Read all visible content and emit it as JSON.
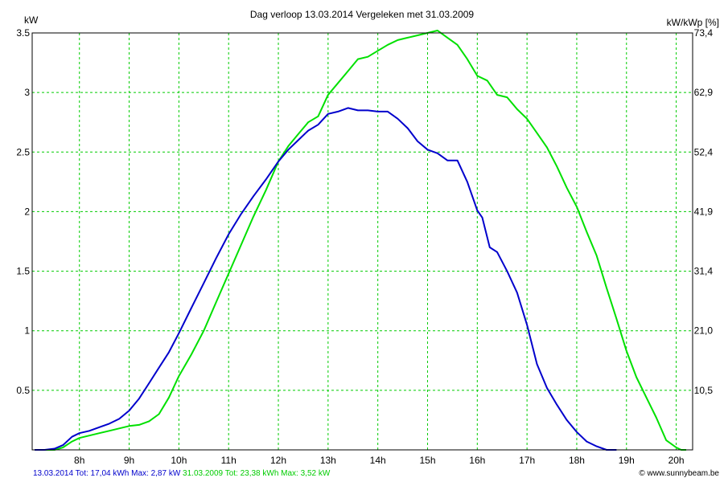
{
  "chart_data": {
    "type": "line",
    "title": "Dag  verloop 13.03.2014   Vergeleken met 31.03.2009",
    "ylabel_left": "kW",
    "ylabel_right": "kW/kWp [%]",
    "xlim": [
      7.05,
      20.33
    ],
    "ylim": [
      0,
      3.5
    ],
    "x_ticks": [
      {
        "v": 8,
        "label": "8h"
      },
      {
        "v": 9,
        "label": "9h"
      },
      {
        "v": 10,
        "label": "10h"
      },
      {
        "v": 11,
        "label": "11h"
      },
      {
        "v": 12,
        "label": "12h"
      },
      {
        "v": 13,
        "label": "13h"
      },
      {
        "v": 14,
        "label": "14h"
      },
      {
        "v": 15,
        "label": "15h"
      },
      {
        "v": 16,
        "label": "16h"
      },
      {
        "v": 17,
        "label": "17h"
      },
      {
        "v": 18,
        "label": "18h"
      },
      {
        "v": 19,
        "label": "19h"
      },
      {
        "v": 20,
        "label": "20h"
      }
    ],
    "y_ticks_left": [
      {
        "v": 0.5,
        "label": "0.5"
      },
      {
        "v": 1,
        "label": "1"
      },
      {
        "v": 1.5,
        "label": "1.5"
      },
      {
        "v": 2,
        "label": "2"
      },
      {
        "v": 2.5,
        "label": "2.5"
      },
      {
        "v": 3,
        "label": "3"
      },
      {
        "v": 3.5,
        "label": "3.5"
      }
    ],
    "y_ticks_right": [
      {
        "v": 0.5,
        "label": "10,5"
      },
      {
        "v": 1,
        "label": "21,0"
      },
      {
        "v": 1.5,
        "label": "31,4"
      },
      {
        "v": 2,
        "label": "41,9"
      },
      {
        "v": 2.5,
        "label": "52,4"
      },
      {
        "v": 3,
        "label": "62,9"
      },
      {
        "v": 3.5,
        "label": "73,4"
      }
    ],
    "grid": true,
    "colors": {
      "series1": "#0000cc",
      "series2": "#00e000",
      "grid": "#00cc00"
    },
    "series": [
      {
        "name": "13.03.2014",
        "x": [
          7.1,
          7.3,
          7.5,
          7.67,
          7.85,
          8.0,
          8.2,
          8.4,
          8.6,
          8.8,
          9.0,
          9.2,
          9.4,
          9.6,
          9.8,
          10.0,
          10.25,
          10.5,
          10.75,
          11.0,
          11.25,
          11.5,
          11.75,
          12.0,
          12.2,
          12.4,
          12.6,
          12.8,
          13.0,
          13.2,
          13.4,
          13.6,
          13.8,
          14.0,
          14.2,
          14.4,
          14.6,
          14.8,
          15.0,
          15.2,
          15.4,
          15.6,
          15.8,
          16.0,
          16.1,
          16.25,
          16.4,
          16.6,
          16.8,
          17.0,
          17.2,
          17.4,
          17.6,
          17.8,
          18.0,
          18.2,
          18.4,
          18.6,
          18.8
        ],
        "y": [
          0.0,
          0.0,
          0.01,
          0.04,
          0.11,
          0.14,
          0.16,
          0.19,
          0.22,
          0.26,
          0.33,
          0.43,
          0.56,
          0.69,
          0.82,
          0.98,
          1.19,
          1.4,
          1.61,
          1.81,
          1.98,
          2.13,
          2.27,
          2.42,
          2.52,
          2.6,
          2.68,
          2.73,
          2.82,
          2.84,
          2.87,
          2.85,
          2.85,
          2.84,
          2.84,
          2.78,
          2.7,
          2.59,
          2.52,
          2.49,
          2.43,
          2.43,
          2.25,
          2.01,
          1.95,
          1.7,
          1.66,
          1.5,
          1.32,
          1.05,
          0.72,
          0.52,
          0.38,
          0.25,
          0.15,
          0.07,
          0.03,
          0.0,
          0.0
        ]
      },
      {
        "name": "31.03.2009",
        "x": [
          7.1,
          7.3,
          7.5,
          7.67,
          7.85,
          8.0,
          8.2,
          8.4,
          8.6,
          8.8,
          9.0,
          9.2,
          9.4,
          9.6,
          9.8,
          10.0,
          10.25,
          10.5,
          10.75,
          11.0,
          11.25,
          11.5,
          11.75,
          12.0,
          12.2,
          12.4,
          12.6,
          12.8,
          13.0,
          13.2,
          13.4,
          13.6,
          13.8,
          14.0,
          14.2,
          14.4,
          14.6,
          14.8,
          15.0,
          15.2,
          15.4,
          15.6,
          15.8,
          16.0,
          16.2,
          16.4,
          16.6,
          16.8,
          17.0,
          17.2,
          17.4,
          17.6,
          17.8,
          18.0,
          18.2,
          18.4,
          18.6,
          18.8,
          19.0,
          19.2,
          19.4,
          19.6,
          19.8,
          20.0,
          20.1,
          20.2
        ],
        "y": [
          0.0,
          0.0,
          0.0,
          0.02,
          0.07,
          0.1,
          0.12,
          0.14,
          0.16,
          0.18,
          0.2,
          0.21,
          0.24,
          0.3,
          0.44,
          0.62,
          0.8,
          1.0,
          1.24,
          1.48,
          1.72,
          1.96,
          2.18,
          2.42,
          2.55,
          2.65,
          2.75,
          2.8,
          2.98,
          3.08,
          3.18,
          3.28,
          3.3,
          3.35,
          3.4,
          3.44,
          3.46,
          3.48,
          3.5,
          3.52,
          3.46,
          3.4,
          3.28,
          3.14,
          3.1,
          2.98,
          2.96,
          2.86,
          2.78,
          2.66,
          2.54,
          2.38,
          2.2,
          2.04,
          1.83,
          1.63,
          1.36,
          1.1,
          0.83,
          0.61,
          0.44,
          0.27,
          0.08,
          0.02,
          0.0,
          0.0
        ]
      }
    ]
  },
  "footer": {
    "s1_text": "13.03.2014 Tot: 17,04 kWh Max: 2,87 kW",
    "s2_text": " 31.03.2009 Tot: 23,38 kWh Max: 3,52 kW",
    "credit": "© www.sunnybeam.be"
  }
}
